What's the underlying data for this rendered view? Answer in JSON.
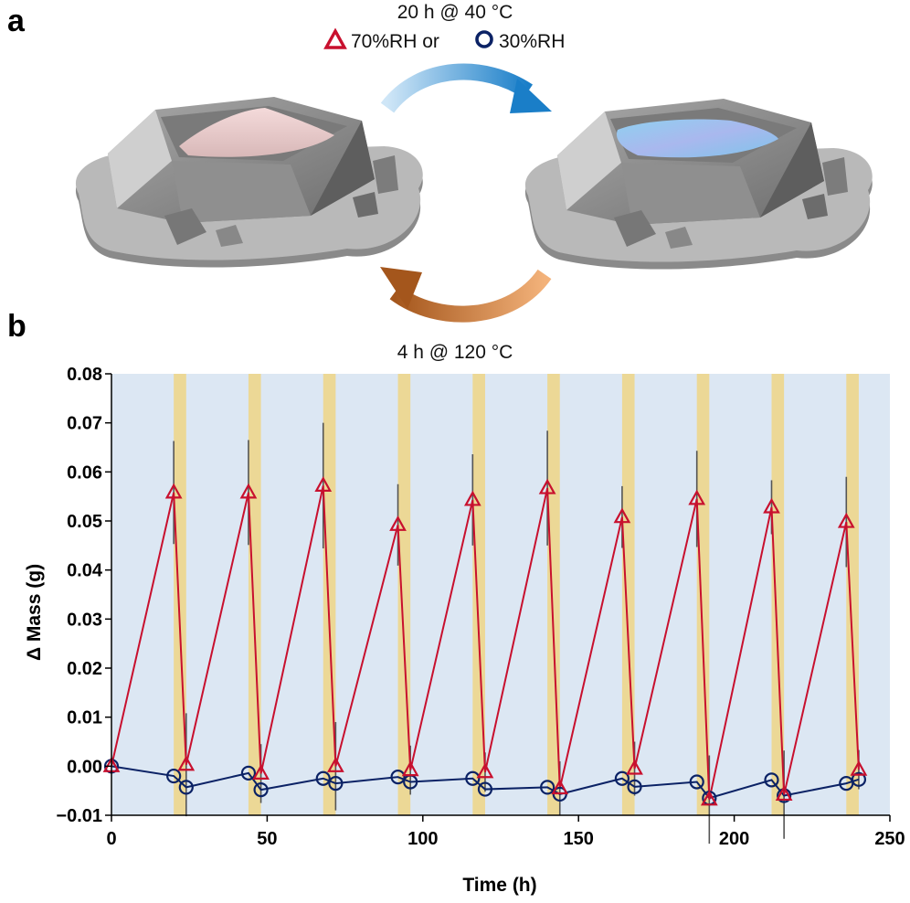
{
  "panel_a": {
    "label": "a",
    "condition_top": "20 h @ 40 °C",
    "legend_high": "70%RH or",
    "legend_low": "30%RH",
    "condition_bottom": "4 h @ 120 °C"
  },
  "panel_b": {
    "label": "b"
  },
  "colors": {
    "high_rh": "#c8102e",
    "low_rh": "#0b2265",
    "heating_band": "#ecd896",
    "plot_bg": "#dce7f3",
    "error_bar": "#555555",
    "arrow_top": "#1a7ec8",
    "arrow_bottom": "#b5652a"
  },
  "chart_data": {
    "type": "line",
    "title": "",
    "xlabel": "Time (h)",
    "ylabel": "Δ Mass (g)",
    "xlim": [
      0,
      250
    ],
    "ylim": [
      -0.01,
      0.08
    ],
    "xticks": [
      0,
      50,
      100,
      150,
      200,
      250
    ],
    "yticks": [
      "−0.01",
      "0.00",
      "0.01",
      "0.02",
      "0.03",
      "0.04",
      "0.05",
      "0.06",
      "0.07",
      "0.08"
    ],
    "grid": false,
    "heating_intervals": [
      [
        20,
        24
      ],
      [
        44,
        48
      ],
      [
        68,
        72
      ],
      [
        92,
        96
      ],
      [
        116,
        120
      ],
      [
        140,
        144
      ],
      [
        164,
        168
      ],
      [
        188,
        192
      ],
      [
        212,
        216
      ],
      [
        236,
        240
      ]
    ],
    "series": [
      {
        "name": "70%RH",
        "marker": "triangle",
        "x": [
          0,
          20,
          24,
          44,
          48,
          68,
          72,
          92,
          96,
          116,
          120,
          140,
          144,
          164,
          168,
          188,
          192,
          212,
          216,
          236,
          240
        ],
        "y": [
          0.0,
          0.0558,
          0.0003,
          0.0558,
          -0.0015,
          0.0572,
          0.0,
          0.0492,
          -0.0008,
          0.0543,
          -0.0012,
          0.0567,
          -0.0045,
          0.0508,
          -0.0005,
          0.0545,
          -0.0068,
          0.0528,
          -0.0058,
          0.0498,
          -0.0007
        ],
        "err": [
          0,
          0.0105,
          0.0105,
          0.0107,
          0.006,
          0.0128,
          0.009,
          0.0083,
          0.005,
          0.0093,
          0.004,
          0.0117,
          0.0055,
          0.0063,
          0.0055,
          0.0098,
          0.009,
          0.0055,
          0.009,
          0.0092,
          0.004
        ]
      },
      {
        "name": "30%RH",
        "marker": "circle",
        "x": [
          0,
          20,
          24,
          44,
          48,
          68,
          72,
          92,
          96,
          116,
          120,
          140,
          144,
          164,
          168,
          188,
          192,
          212,
          216,
          236,
          240
        ],
        "y": [
          0.0,
          -0.002,
          -0.0043,
          -0.0014,
          -0.0048,
          -0.0025,
          -0.0035,
          -0.0022,
          -0.0032,
          -0.0025,
          -0.0047,
          -0.0043,
          -0.0057,
          -0.0025,
          -0.0042,
          -0.0032,
          -0.0065,
          -0.0028,
          -0.006,
          -0.0035,
          -0.0027
        ]
      }
    ]
  }
}
